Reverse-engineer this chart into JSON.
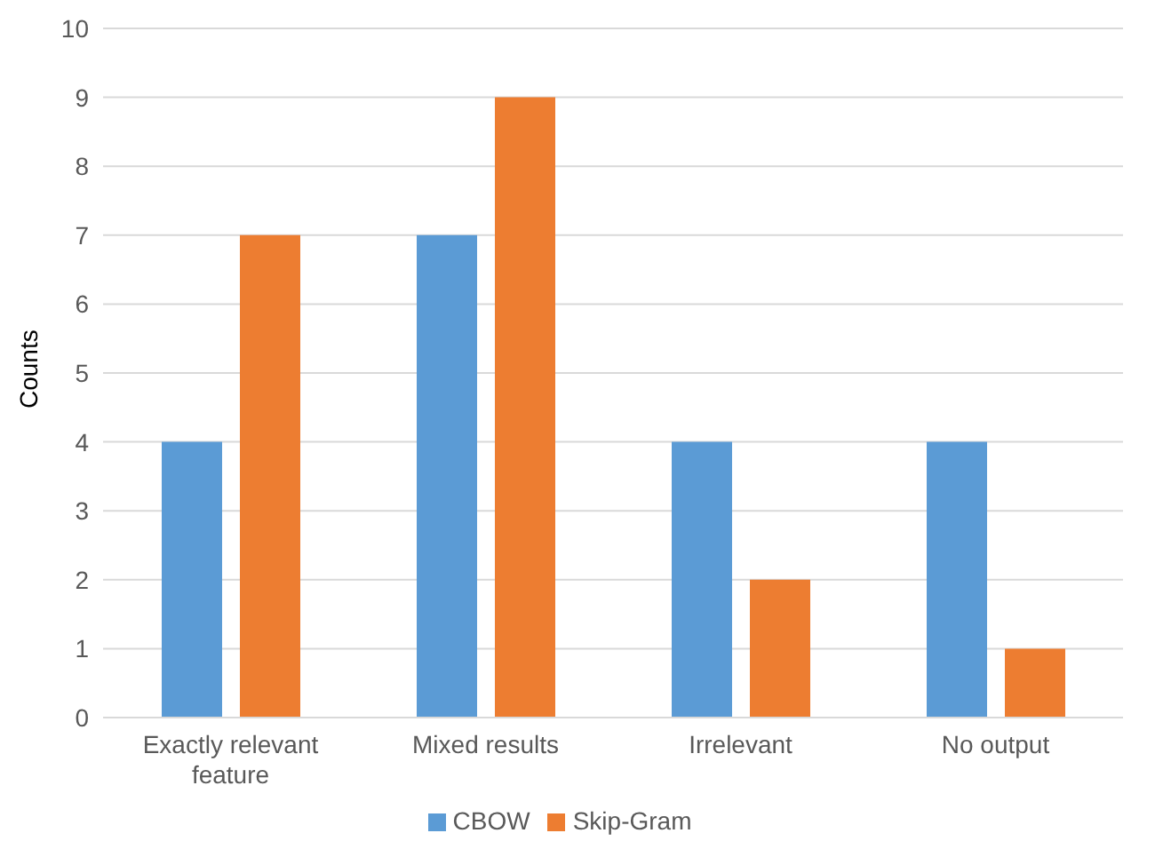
{
  "chart_data": {
    "type": "bar",
    "ylabel": "Counts",
    "categories": [
      "Exactly relevant feature",
      "Mixed results",
      "Irrelevant",
      "No output"
    ],
    "series": [
      {
        "name": "CBOW",
        "color": "#5b9bd5",
        "values": [
          4,
          7,
          4,
          4
        ]
      },
      {
        "name": "Skip-Gram",
        "color": "#ed7d31",
        "values": [
          7,
          9,
          2,
          1
        ]
      }
    ],
    "ylim": [
      0,
      10
    ],
    "yticks": [
      0,
      1,
      2,
      3,
      4,
      5,
      6,
      7,
      8,
      9,
      10
    ],
    "grid": "y",
    "legend": "bottom"
  }
}
